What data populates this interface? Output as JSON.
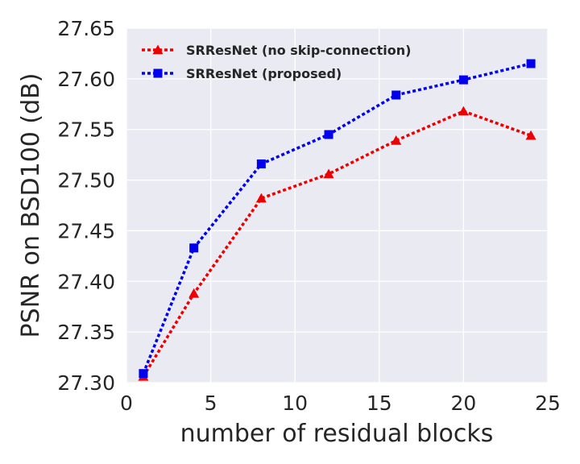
{
  "chart_data": {
    "type": "line",
    "title": "",
    "xlabel": "number of residual blocks",
    "ylabel": "PSNR on BSD100 (dB)",
    "xlim": [
      0,
      25
    ],
    "ylim": [
      27.3,
      27.65
    ],
    "xticks": [
      0,
      5,
      10,
      15,
      20,
      25
    ],
    "yticks": [
      27.3,
      27.35,
      27.4,
      27.45,
      27.5,
      27.55,
      27.6,
      27.65
    ],
    "xtick_labels": [
      "0",
      "5",
      "10",
      "15",
      "20",
      "25"
    ],
    "ytick_labels": [
      "27.30",
      "27.35",
      "27.40",
      "27.45",
      "27.50",
      "27.55",
      "27.60",
      "27.65"
    ],
    "grid": true,
    "background_color": "#eaeaf2",
    "legend_position": "top-left",
    "series": [
      {
        "name": "SRResNet (no skip-connection)",
        "color": "#ee0000",
        "marker": "triangle",
        "line_style": "dotted",
        "x": [
          1,
          4,
          8,
          12,
          16,
          20,
          24
        ],
        "y": [
          27.306,
          27.388,
          27.482,
          27.506,
          27.539,
          27.568,
          27.544
        ]
      },
      {
        "name": "SRResNet (proposed)",
        "color": "#0000ee",
        "marker": "square",
        "line_style": "dotted",
        "x": [
          1,
          4,
          8,
          12,
          16,
          20,
          24
        ],
        "y": [
          27.309,
          27.433,
          27.516,
          27.545,
          27.584,
          27.599,
          27.615
        ]
      }
    ]
  }
}
